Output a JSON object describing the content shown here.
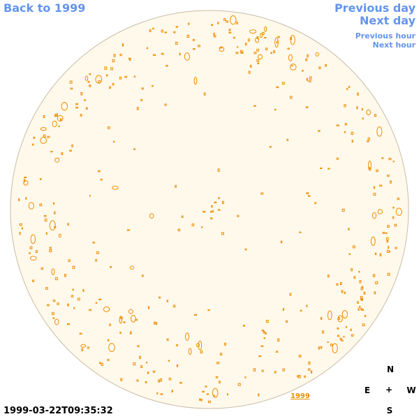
{
  "navigation": {
    "back": "Back to 1999",
    "previous_day": "Previous day",
    "next_day": "Next day",
    "previous_hour": "Previous hour",
    "next_hour": "Next hour"
  },
  "timestamp": "1999-03-22T09:35:32",
  "compass": {
    "north": "N",
    "east": "E",
    "center": "+",
    "west": "W",
    "south": "S"
  },
  "year_label": "1999"
}
